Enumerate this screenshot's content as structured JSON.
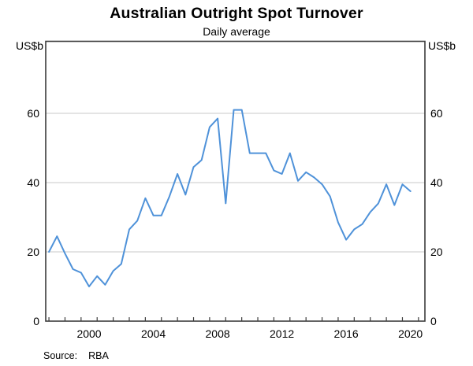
{
  "chart": {
    "title": "Australian Outright Spot Turnover",
    "subtitle": "Daily average",
    "y_unit": "US$b",
    "source_label": "Source:",
    "source": "RBA"
  },
  "chart_data": {
    "type": "line",
    "title": "Australian Outright Spot Turnover",
    "subtitle": "Daily average",
    "xlabel": "",
    "ylabel": "US$b",
    "ylim": [
      0,
      80
    ],
    "yticks": [
      0,
      20,
      40,
      60
    ],
    "ytick_labels_sides": "both",
    "xlim": [
      1997.8,
      2021.4
    ],
    "xticks_labeled": [
      2000,
      2004,
      2008,
      2012,
      2016,
      2020
    ],
    "xtick_minor_interval_years": 1,
    "grid": "horizontal",
    "legend": "none",
    "colors": {
      "line": "#4f92d9",
      "grid": "#c9c9c9",
      "frame": "#3c3c3c",
      "text": "#000000"
    },
    "series": [
      {
        "name": "Outright spot turnover (daily average)",
        "frequency": "semi-annual",
        "x": [
          1998.0,
          1998.5,
          1999.0,
          1999.5,
          2000.0,
          2000.5,
          2001.0,
          2001.5,
          2002.0,
          2002.5,
          2003.0,
          2003.5,
          2004.0,
          2004.5,
          2005.0,
          2005.5,
          2006.0,
          2006.5,
          2007.0,
          2007.5,
          2008.0,
          2008.5,
          2009.0,
          2009.5,
          2010.0,
          2010.5,
          2011.0,
          2011.5,
          2012.0,
          2012.5,
          2013.0,
          2013.5,
          2014.0,
          2014.5,
          2015.0,
          2015.5,
          2016.0,
          2016.5,
          2017.0,
          2017.5,
          2018.0,
          2018.5,
          2019.0,
          2019.5,
          2020.0,
          2020.5
        ],
        "values": [
          20,
          24.5,
          19.5,
          15,
          14,
          10,
          13,
          10.5,
          14.5,
          16.5,
          26.5,
          29,
          35.5,
          30.5,
          30.5,
          36,
          42.5,
          36.5,
          44.5,
          46.5,
          56,
          58.5,
          34,
          61,
          61,
          48.5,
          48.5,
          48.5,
          43.5,
          42.5,
          48.5,
          40.5,
          43,
          41.5,
          39.5,
          36,
          28.5,
          23.5,
          26.5,
          28,
          31.5,
          34,
          39.5,
          33.5,
          39.5,
          37.5
        ]
      }
    ]
  }
}
